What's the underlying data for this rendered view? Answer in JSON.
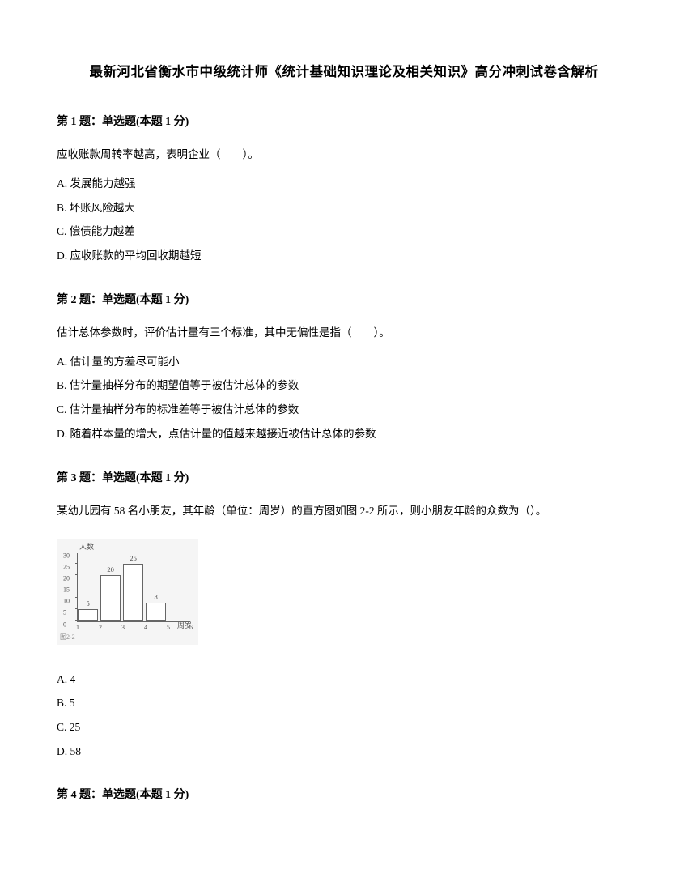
{
  "title": "最新河北省衡水市中级统计师《统计基础知识理论及相关知识》高分冲刺试卷含解析",
  "questions": [
    {
      "header": "第 1 题：单选题(本题 1 分)",
      "text": "应收账款周转率越高，表明企业（　　）。",
      "options": [
        "A. 发展能力越强",
        "B. 坏账风险越大",
        "C. 偿债能力越差",
        "D. 应收账款的平均回收期越短"
      ]
    },
    {
      "header": "第 2 题：单选题(本题 1 分)",
      "text": "估计总体参数时，评价估计量有三个标准，其中无偏性是指（　　）。",
      "options": [
        "A. 估计量的方差尽可能小",
        "B. 估计量抽样分布的期望值等于被估计总体的参数",
        "C. 估计量抽样分布的标准差等于被估计总体的参数",
        "D. 随着样本量的增大，点估计量的值越来越接近被估计总体的参数"
      ]
    },
    {
      "header": "第 3 题：单选题(本题 1 分)",
      "text": "某幼儿园有 58 名小朋友，其年龄（单位：周岁）的直方图如图 2-2 所示，则小朋友年龄的众数为（）。",
      "options": [
        "A. 4",
        "B. 5",
        "C. 25",
        "D. 58"
      ]
    },
    {
      "header": "第 4 题：单选题(本题 1 分)"
    }
  ],
  "chart": {
    "type": "bar",
    "ylabel": "人数",
    "xlabel": "周岁",
    "ylim": [
      0,
      30
    ],
    "ytick_step": 5,
    "yticks": [
      0,
      5,
      10,
      15,
      20,
      25,
      30
    ],
    "xticks": [
      1,
      2,
      3,
      4,
      5,
      6
    ],
    "categories": [
      2,
      3,
      4,
      5
    ],
    "values": [
      5,
      20,
      25,
      8
    ],
    "bar_labels": [
      "5",
      "20",
      "25",
      "8"
    ],
    "bar_color": "#ffffff",
    "bar_border_color": "#666666",
    "background_color": "#f5f5f5",
    "bar_width": 0.9,
    "label_fontsize": 9,
    "tick_fontsize": 8,
    "footer_text": "图2-2"
  }
}
